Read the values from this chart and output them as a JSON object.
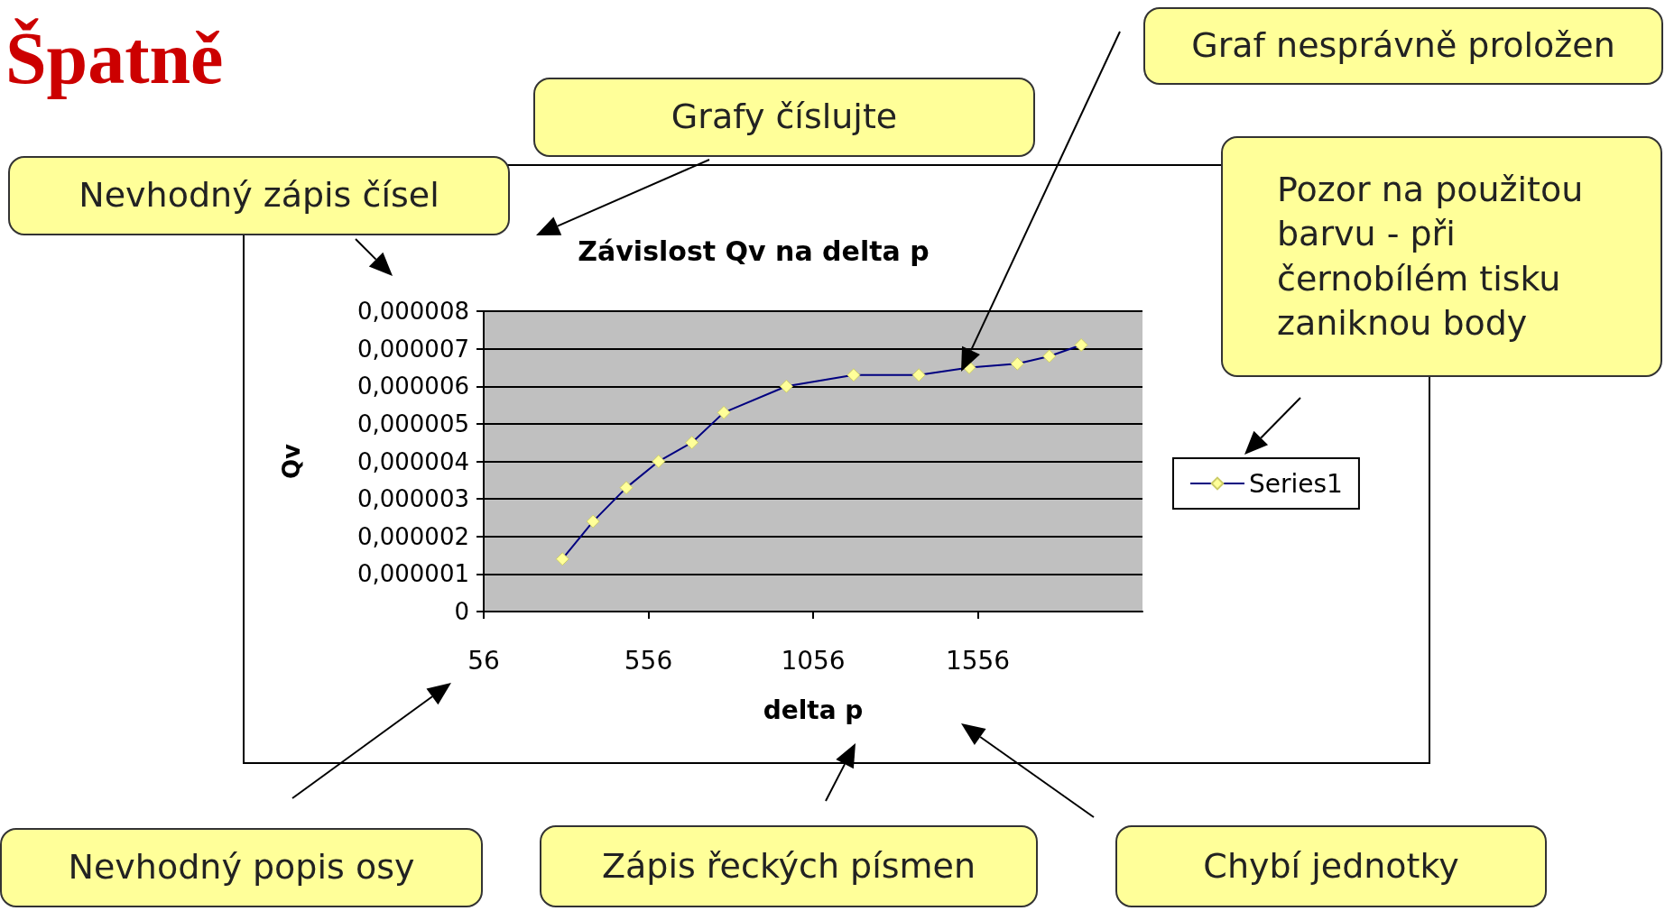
{
  "chart_data": {
    "type": "line",
    "title": "Závislost Qv na delta p",
    "xlabel": "delta p",
    "ylabel": "Qv",
    "annotations": [
      "Špatně",
      "Grafy číslujte",
      "Graf nesprávně proložen",
      "Nevhodný zápis čísel",
      "Pozor na použitou barvu - při černobílém tisku zaniknou body",
      "Nevhodný popis osy",
      "Zápis řeckých písmen",
      "Chybí jednotky"
    ],
    "series": [
      {
        "name": "Series1",
        "color": "#000080",
        "x": [
          295,
          388,
          489,
          587,
          688,
          785,
          975,
          1179,
          1377,
          1530,
          1676,
          1773,
          1870
        ],
        "values": [
          1.4e-06,
          2.4e-06,
          3.3e-06,
          4e-06,
          4.5e-06,
          5.3e-06,
          6e-06,
          6.3e-06,
          6.3e-06,
          6.5e-06,
          6.6e-06,
          6.8e-06,
          7.1e-06
        ]
      }
    ],
    "xlim": [
      56,
      2056
    ],
    "xticks": [
      56,
      556,
      1056,
      1556
    ],
    "ylim": [
      0,
      8e-06
    ],
    "yticks": [
      0,
      {
        "value": 1e-06,
        "label": "0,000001"
      },
      {
        "value": 2e-06,
        "label": "0,000002"
      },
      {
        "value": 3e-06,
        "label": "0,000003"
      },
      {
        "value": 4e-06,
        "label": "0,000004"
      },
      {
        "value": 5e-06,
        "label": "0,000005"
      },
      {
        "value": 6e-06,
        "label": "0,000006"
      },
      {
        "value": 7e-06,
        "label": "0,000007"
      },
      {
        "value": 8e-06,
        "label": "0,000008"
      }
    ],
    "grid": "y",
    "legend": "right",
    "marker": "diamond",
    "line_style": "solid"
  }
}
